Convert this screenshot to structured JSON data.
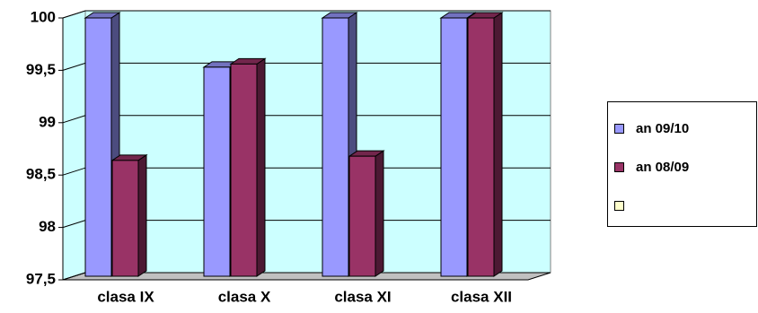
{
  "chart_data": {
    "type": "bar3d",
    "categories": [
      "clasa IX",
      "clasa X",
      "clasa XI",
      "clasa XII"
    ],
    "series": [
      {
        "name": "an 09/10",
        "color": "#9999ff",
        "values": [
          100,
          99.53,
          100,
          100
        ]
      },
      {
        "name": "an 08/09",
        "color": "#993366",
        "values": [
          98.64,
          99.56,
          98.68,
          100
        ]
      },
      {
        "name": null,
        "color": "#ffffcc",
        "values": [
          null,
          null,
          null,
          null
        ]
      }
    ],
    "ylim": [
      97.5,
      100
    ],
    "yticks": [
      {
        "value": 97.5,
        "label": "97,5"
      },
      98,
      {
        "value": 98.5,
        "label": "98,5"
      },
      99,
      {
        "value": 99.5,
        "label": "99,5"
      },
      100
    ],
    "grid": true,
    "legend": "right"
  }
}
